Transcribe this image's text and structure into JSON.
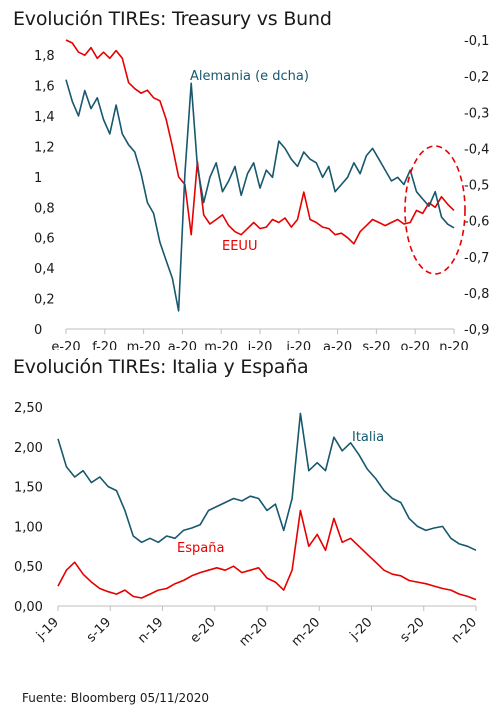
{
  "chart_data": [
    {
      "type": "line",
      "title": "Evolución TIREs: Treasury vs Bund",
      "xlabel": "",
      "ylabel": "",
      "x_tick_labels": [
        "e-20",
        "f-20",
        "m-20",
        "a-20",
        "m-20",
        "j-20",
        "j-20",
        "a-20",
        "s-20",
        "o-20",
        "n-20"
      ],
      "y_left": {
        "ticks": [
          "0",
          "0,2",
          "0,4",
          "0,6",
          "0,8",
          "1",
          "1,2",
          "1,4",
          "1,6",
          "1,8"
        ],
        "ylim": [
          0,
          1.9
        ]
      },
      "y_right": {
        "ticks": [
          "-0,1",
          "-0,2",
          "-0,3",
          "-0,4",
          "-0,5",
          "-0,6",
          "-0,7",
          "-0,8",
          "-0,9"
        ],
        "ylim": [
          -0.9,
          -0.1
        ]
      },
      "grid": false,
      "annotation": "dashed red ellipse around latest values",
      "series": [
        {
          "name": "EEUU",
          "axis": "left",
          "color": "#e60000",
          "points": [
            [
              1,
              1.9
            ],
            [
              2,
              1.88
            ],
            [
              3,
              1.82
            ],
            [
              4,
              1.8
            ],
            [
              5,
              1.85
            ],
            [
              6,
              1.78
            ],
            [
              7,
              1.82
            ],
            [
              8,
              1.78
            ],
            [
              9,
              1.83
            ],
            [
              10,
              1.78
            ],
            [
              11,
              1.62
            ],
            [
              12,
              1.58
            ],
            [
              13,
              1.55
            ],
            [
              14,
              1.57
            ],
            [
              15,
              1.52
            ],
            [
              16,
              1.5
            ],
            [
              17,
              1.38
            ],
            [
              18,
              1.2
            ],
            [
              19,
              1.0
            ],
            [
              20,
              0.95
            ],
            [
              21,
              0.62
            ],
            [
              22,
              1.1
            ],
            [
              23,
              0.75
            ],
            [
              24,
              0.69
            ],
            [
              25,
              0.72
            ],
            [
              26,
              0.75
            ],
            [
              27,
              0.68
            ],
            [
              28,
              0.64
            ],
            [
              29,
              0.62
            ],
            [
              30,
              0.66
            ],
            [
              31,
              0.7
            ],
            [
              32,
              0.66
            ],
            [
              33,
              0.67
            ],
            [
              34,
              0.72
            ],
            [
              35,
              0.7
            ],
            [
              36,
              0.73
            ],
            [
              37,
              0.67
            ],
            [
              38,
              0.72
            ],
            [
              39,
              0.9
            ],
            [
              40,
              0.72
            ],
            [
              41,
              0.7
            ],
            [
              42,
              0.67
            ],
            [
              43,
              0.66
            ],
            [
              44,
              0.62
            ],
            [
              45,
              0.63
            ],
            [
              46,
              0.6
            ],
            [
              47,
              0.56
            ],
            [
              48,
              0.64
            ],
            [
              49,
              0.68
            ],
            [
              50,
              0.72
            ],
            [
              51,
              0.7
            ],
            [
              52,
              0.68
            ],
            [
              53,
              0.7
            ],
            [
              54,
              0.72
            ],
            [
              55,
              0.69
            ],
            [
              56,
              0.7
            ],
            [
              57,
              0.78
            ],
            [
              58,
              0.76
            ],
            [
              59,
              0.83
            ],
            [
              60,
              0.8
            ],
            [
              61,
              0.87
            ],
            [
              62,
              0.82
            ],
            [
              63,
              0.78
            ]
          ]
        },
        {
          "name": "Alemania (e dcha)",
          "axis": "right",
          "color": "#17586e",
          "points": [
            [
              1,
              -0.21
            ],
            [
              2,
              -0.27
            ],
            [
              3,
              -0.31
            ],
            [
              4,
              -0.24
            ],
            [
              5,
              -0.29
            ],
            [
              6,
              -0.26
            ],
            [
              7,
              -0.32
            ],
            [
              8,
              -0.36
            ],
            [
              9,
              -0.28
            ],
            [
              10,
              -0.36
            ],
            [
              11,
              -0.39
            ],
            [
              12,
              -0.41
            ],
            [
              13,
              -0.47
            ],
            [
              14,
              -0.55
            ],
            [
              15,
              -0.58
            ],
            [
              16,
              -0.66
            ],
            [
              17,
              -0.71
            ],
            [
              18,
              -0.76
            ],
            [
              19,
              -0.85
            ],
            [
              20,
              -0.47
            ],
            [
              21,
              -0.22
            ],
            [
              22,
              -0.45
            ],
            [
              23,
              -0.55
            ],
            [
              24,
              -0.48
            ],
            [
              25,
              -0.44
            ],
            [
              26,
              -0.52
            ],
            [
              27,
              -0.49
            ],
            [
              28,
              -0.45
            ],
            [
              29,
              -0.53
            ],
            [
              30,
              -0.47
            ],
            [
              31,
              -0.44
            ],
            [
              32,
              -0.51
            ],
            [
              33,
              -0.46
            ],
            [
              34,
              -0.48
            ],
            [
              35,
              -0.38
            ],
            [
              36,
              -0.4
            ],
            [
              37,
              -0.43
            ],
            [
              38,
              -0.45
            ],
            [
              39,
              -0.41
            ],
            [
              40,
              -0.43
            ],
            [
              41,
              -0.44
            ],
            [
              42,
              -0.48
            ],
            [
              43,
              -0.45
            ],
            [
              44,
              -0.52
            ],
            [
              45,
              -0.5
            ],
            [
              46,
              -0.48
            ],
            [
              47,
              -0.44
            ],
            [
              48,
              -0.47
            ],
            [
              49,
              -0.42
            ],
            [
              50,
              -0.4
            ],
            [
              51,
              -0.43
            ],
            [
              52,
              -0.46
            ],
            [
              53,
              -0.49
            ],
            [
              54,
              -0.48
            ],
            [
              55,
              -0.5
            ],
            [
              56,
              -0.46
            ],
            [
              57,
              -0.52
            ],
            [
              58,
              -0.54
            ],
            [
              59,
              -0.56
            ],
            [
              60,
              -0.52
            ],
            [
              61,
              -0.59
            ],
            [
              62,
              -0.61
            ],
            [
              63,
              -0.62
            ]
          ]
        }
      ],
      "series_labels": [
        "Alemania (e dcha)",
        "EEUU"
      ]
    },
    {
      "type": "line",
      "title": "Evolución TIREs: Italia y España",
      "xlabel": "",
      "ylabel": "",
      "x_tick_labels": [
        "j-19",
        "s-19",
        "n-19",
        "e-20",
        "m-20",
        "m-20",
        "j-20",
        "s-20",
        "n-20"
      ],
      "y_left": {
        "ticks": [
          "0,00",
          "0,50",
          "1,00",
          "1,50",
          "2,00",
          "2,50"
        ],
        "ylim": [
          0,
          2.5
        ]
      },
      "grid": false,
      "series": [
        {
          "name": "Italia",
          "color": "#17586e",
          "points": [
            [
              0,
              2.1
            ],
            [
              1,
              1.75
            ],
            [
              2,
              1.62
            ],
            [
              3,
              1.7
            ],
            [
              4,
              1.55
            ],
            [
              5,
              1.62
            ],
            [
              6,
              1.5
            ],
            [
              7,
              1.45
            ],
            [
              8,
              1.2
            ],
            [
              9,
              0.88
            ],
            [
              10,
              0.8
            ],
            [
              11,
              0.85
            ],
            [
              12,
              0.8
            ],
            [
              13,
              0.88
            ],
            [
              14,
              0.85
            ],
            [
              15,
              0.95
            ],
            [
              16,
              0.98
            ],
            [
              17,
              1.02
            ],
            [
              18,
              1.2
            ],
            [
              19,
              1.25
            ],
            [
              20,
              1.3
            ],
            [
              21,
              1.35
            ],
            [
              22,
              1.32
            ],
            [
              23,
              1.38
            ],
            [
              24,
              1.35
            ],
            [
              25,
              1.2
            ],
            [
              26,
              1.28
            ],
            [
              27,
              0.95
            ],
            [
              28,
              1.35
            ],
            [
              29,
              2.42
            ],
            [
              30,
              1.7
            ],
            [
              31,
              1.8
            ],
            [
              32,
              1.7
            ],
            [
              33,
              2.12
            ],
            [
              34,
              1.95
            ],
            [
              35,
              2.05
            ],
            [
              36,
              1.9
            ],
            [
              37,
              1.72
            ],
            [
              38,
              1.6
            ],
            [
              39,
              1.45
            ],
            [
              40,
              1.35
            ],
            [
              41,
              1.3
            ],
            [
              42,
              1.1
            ],
            [
              43,
              1.0
            ],
            [
              44,
              0.95
            ],
            [
              45,
              0.98
            ],
            [
              46,
              1.0
            ],
            [
              47,
              0.85
            ],
            [
              48,
              0.78
            ],
            [
              49,
              0.75
            ],
            [
              50,
              0.7
            ]
          ]
        },
        {
          "name": "España",
          "color": "#e60000",
          "points": [
            [
              0,
              0.25
            ],
            [
              1,
              0.45
            ],
            [
              2,
              0.55
            ],
            [
              3,
              0.4
            ],
            [
              4,
              0.3
            ],
            [
              5,
              0.22
            ],
            [
              6,
              0.18
            ],
            [
              7,
              0.15
            ],
            [
              8,
              0.2
            ],
            [
              9,
              0.12
            ],
            [
              10,
              0.1
            ],
            [
              11,
              0.15
            ],
            [
              12,
              0.2
            ],
            [
              13,
              0.22
            ],
            [
              14,
              0.28
            ],
            [
              15,
              0.32
            ],
            [
              16,
              0.38
            ],
            [
              17,
              0.42
            ],
            [
              18,
              0.45
            ],
            [
              19,
              0.48
            ],
            [
              20,
              0.45
            ],
            [
              21,
              0.5
            ],
            [
              22,
              0.42
            ],
            [
              23,
              0.45
            ],
            [
              24,
              0.48
            ],
            [
              25,
              0.35
            ],
            [
              26,
              0.3
            ],
            [
              27,
              0.2
            ],
            [
              28,
              0.45
            ],
            [
              29,
              1.2
            ],
            [
              30,
              0.75
            ],
            [
              31,
              0.9
            ],
            [
              32,
              0.7
            ],
            [
              33,
              1.1
            ],
            [
              34,
              0.8
            ],
            [
              35,
              0.85
            ],
            [
              36,
              0.75
            ],
            [
              37,
              0.65
            ],
            [
              38,
              0.55
            ],
            [
              39,
              0.45
            ],
            [
              40,
              0.4
            ],
            [
              41,
              0.38
            ],
            [
              42,
              0.32
            ],
            [
              43,
              0.3
            ],
            [
              44,
              0.28
            ],
            [
              45,
              0.25
            ],
            [
              46,
              0.22
            ],
            [
              47,
              0.2
            ],
            [
              48,
              0.15
            ],
            [
              49,
              0.12
            ],
            [
              50,
              0.08
            ]
          ]
        }
      ],
      "series_labels": [
        "Italia",
        "España"
      ]
    }
  ],
  "source": "Fuente: Bloomberg  05/11/2020"
}
